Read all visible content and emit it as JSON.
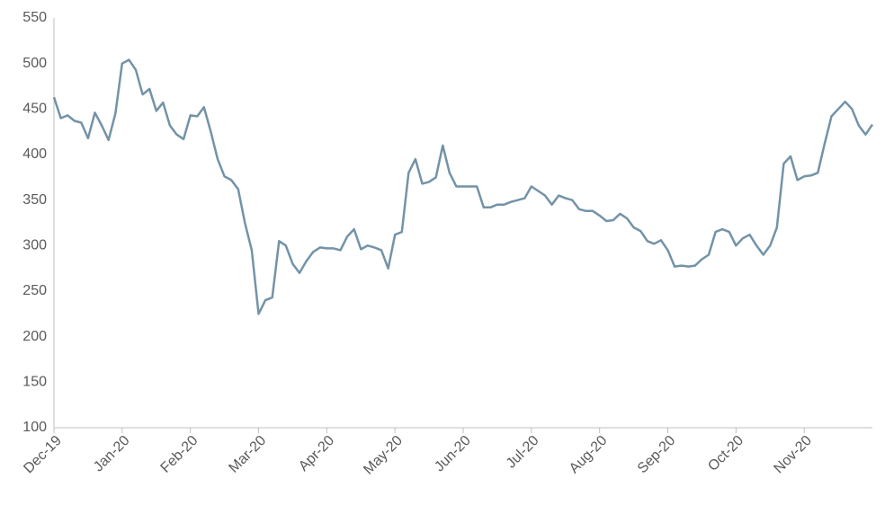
{
  "chart_data": {
    "type": "line",
    "categories": [
      "Dec-19",
      null,
      null,
      null,
      null,
      null,
      null,
      null,
      null,
      null,
      "Jan-20",
      null,
      null,
      null,
      null,
      null,
      null,
      null,
      null,
      null,
      "Feb-20",
      null,
      null,
      null,
      null,
      null,
      null,
      null,
      null,
      null,
      "Mar-20",
      null,
      null,
      null,
      null,
      null,
      null,
      null,
      null,
      null,
      "Apr-20",
      null,
      null,
      null,
      null,
      null,
      null,
      null,
      null,
      null,
      "May-20",
      null,
      null,
      null,
      null,
      null,
      null,
      null,
      null,
      null,
      "Jun-20",
      null,
      null,
      null,
      null,
      null,
      null,
      null,
      null,
      null,
      "Jul-20",
      null,
      null,
      null,
      null,
      null,
      null,
      null,
      null,
      null,
      "Aug-20",
      null,
      null,
      null,
      null,
      null,
      null,
      null,
      null,
      null,
      "Sep-20",
      null,
      null,
      null,
      null,
      null,
      null,
      null,
      null,
      null,
      "Oct-20",
      null,
      null,
      null,
      null,
      null,
      null,
      null,
      null,
      null,
      "Nov-20",
      null,
      null,
      null,
      null,
      null,
      null,
      null,
      null,
      null,
      null
    ],
    "values": [
      463,
      440,
      443,
      437,
      435,
      418,
      446,
      432,
      416,
      445,
      500,
      504,
      493,
      466,
      472,
      448,
      457,
      432,
      422,
      417,
      443,
      442,
      452,
      425,
      395,
      376,
      372,
      362,
      325,
      295,
      225,
      240,
      243,
      305,
      300,
      280,
      270,
      283,
      293,
      298,
      297,
      297,
      295,
      310,
      318,
      296,
      300,
      298,
      295,
      275,
      312,
      315,
      380,
      395,
      368,
      370,
      375,
      410,
      380,
      365,
      365,
      365,
      365,
      342,
      342,
      345,
      345,
      348,
      350,
      352,
      365,
      360,
      355,
      345,
      355,
      352,
      350,
      340,
      338,
      338,
      333,
      327,
      328,
      335,
      330,
      320,
      316,
      305,
      302,
      306,
      295,
      277,
      278,
      277,
      278,
      285,
      290,
      315,
      318,
      315,
      300,
      308,
      312,
      300,
      290,
      300,
      320,
      390,
      398,
      372,
      376,
      377,
      380,
      412,
      442,
      450,
      458,
      450,
      432,
      422,
      433
    ],
    "color": "#7393a7",
    "ylim": [
      100,
      550
    ],
    "yticks": [
      100,
      150,
      200,
      250,
      300,
      350,
      400,
      450,
      500,
      550
    ]
  }
}
